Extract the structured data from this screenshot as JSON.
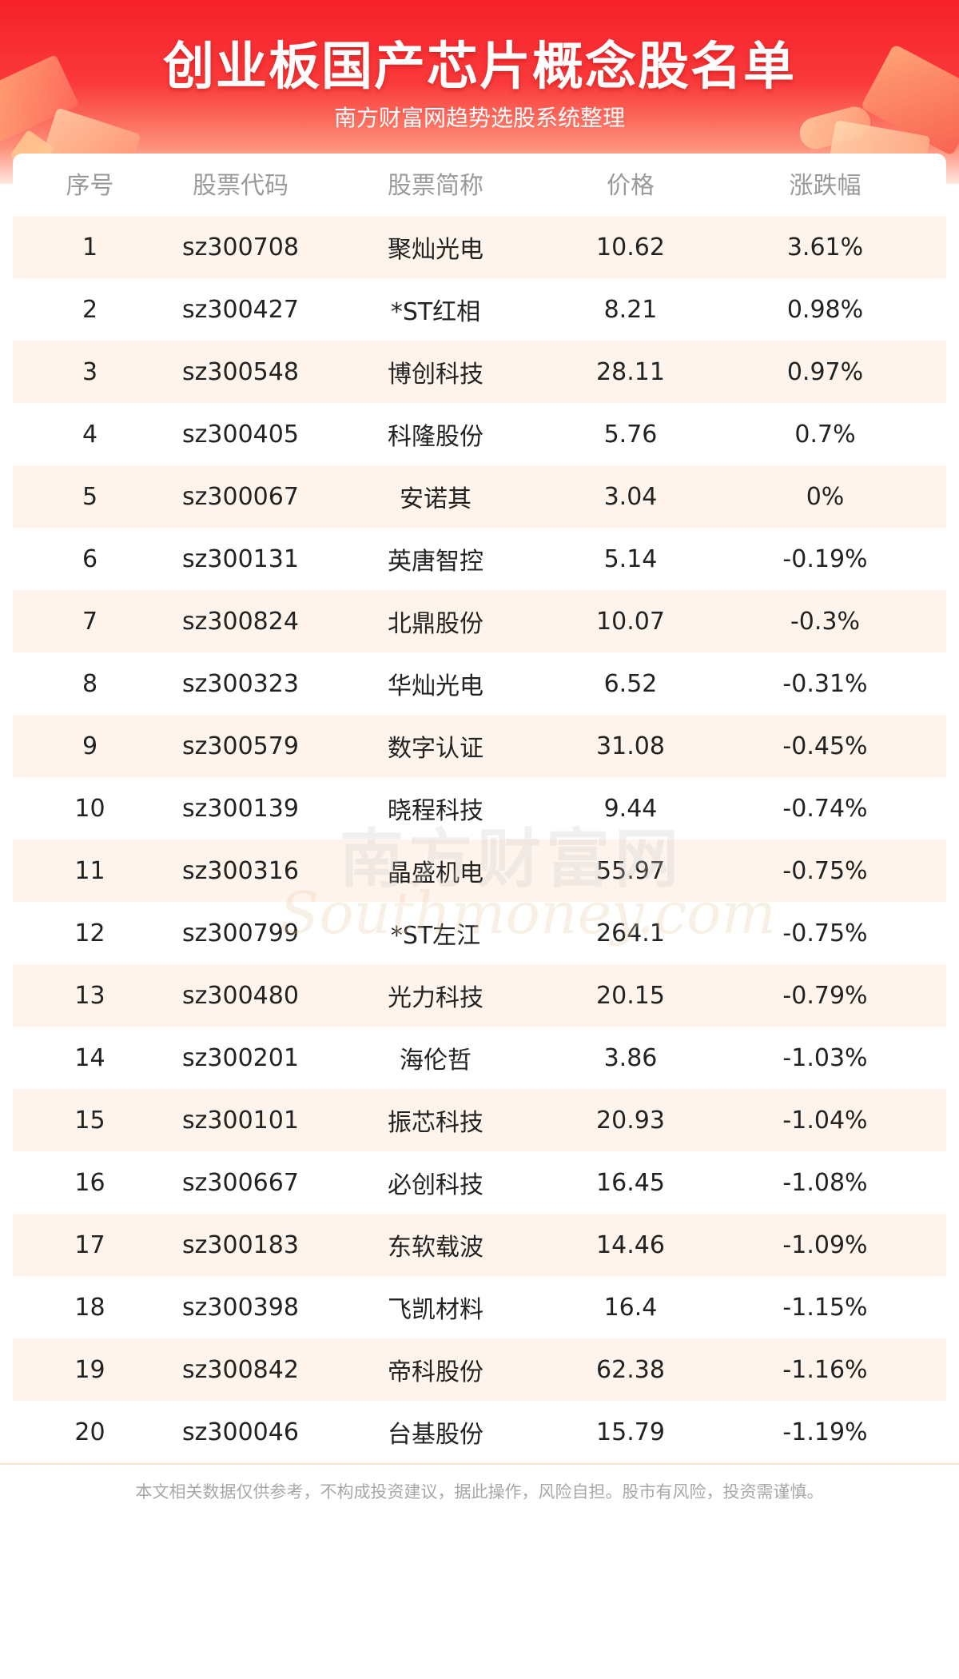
{
  "header": {
    "title": "创业板国产芯片概念股名单",
    "subtitle": "南方财富网趋势选股系统整理"
  },
  "table": {
    "columns": [
      "序号",
      "股票代码",
      "股票简称",
      "价格",
      "涨跌幅"
    ],
    "rows": [
      [
        "1",
        "sz300708",
        "聚灿光电",
        "10.62",
        "3.61%"
      ],
      [
        "2",
        "sz300427",
        "*ST红相",
        "8.21",
        "0.98%"
      ],
      [
        "3",
        "sz300548",
        "博创科技",
        "28.11",
        "0.97%"
      ],
      [
        "4",
        "sz300405",
        "科隆股份",
        "5.76",
        "0.7%"
      ],
      [
        "5",
        "sz300067",
        "安诺其",
        "3.04",
        "0%"
      ],
      [
        "6",
        "sz300131",
        "英唐智控",
        "5.14",
        "-0.19%"
      ],
      [
        "7",
        "sz300824",
        "北鼎股份",
        "10.07",
        "-0.3%"
      ],
      [
        "8",
        "sz300323",
        "华灿光电",
        "6.52",
        "-0.31%"
      ],
      [
        "9",
        "sz300579",
        "数字认证",
        "31.08",
        "-0.45%"
      ],
      [
        "10",
        "sz300139",
        "晓程科技",
        "9.44",
        "-0.74%"
      ],
      [
        "11",
        "sz300316",
        "晶盛机电",
        "55.97",
        "-0.75%"
      ],
      [
        "12",
        "sz300799",
        "*ST左江",
        "264.1",
        "-0.75%"
      ],
      [
        "13",
        "sz300480",
        "光力科技",
        "20.15",
        "-0.79%"
      ],
      [
        "14",
        "sz300201",
        "海伦哲",
        "3.86",
        "-1.03%"
      ],
      [
        "15",
        "sz300101",
        "振芯科技",
        "20.93",
        "-1.04%"
      ],
      [
        "16",
        "sz300667",
        "必创科技",
        "16.45",
        "-1.08%"
      ],
      [
        "17",
        "sz300183",
        "东软载波",
        "14.46",
        "-1.09%"
      ],
      [
        "18",
        "sz300398",
        "飞凯材料",
        "16.4",
        "-1.15%"
      ],
      [
        "19",
        "sz300842",
        "帝科股份",
        "62.38",
        "-1.16%"
      ],
      [
        "20",
        "sz300046",
        "台基股份",
        "15.79",
        "-1.19%"
      ]
    ]
  },
  "watermark": {
    "cn": "南方财富网",
    "en": "Southmoney.com"
  },
  "footer": {
    "disclaimer": "本文相关数据仅供参考，不构成投资建议，据此操作，风险自担。股市有风险，投资需谨慎。"
  },
  "colors": {
    "header_red": "#f5202a",
    "row_stripe": "#fff4ec",
    "header_text": "#9a9a9a"
  }
}
